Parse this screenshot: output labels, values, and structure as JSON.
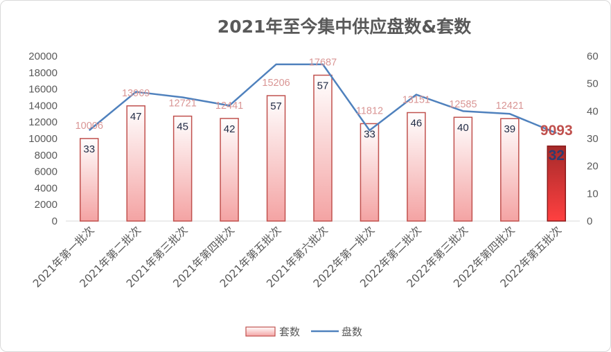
{
  "chart_data": {
    "type": "bar",
    "title": "2021年至今集中供应盘数&套数",
    "categories": [
      "2021年第一批次",
      "2021年第二批次",
      "2021年第三批次",
      "2021年第四批次",
      "2021年第五批次",
      "2021年第六批次",
      "2022年第一批次",
      "2022年第二批次",
      "2022年第三批次",
      "2022年第四批次",
      "2022年第五批次"
    ],
    "series": [
      {
        "name": "套数",
        "type": "bar",
        "axis": "left",
        "values": [
          10006,
          13969,
          12721,
          12441,
          15206,
          17687,
          11812,
          13151,
          12585,
          12421,
          9093
        ],
        "color": "#f4b8b8",
        "highlight_color": "#e03b3b"
      },
      {
        "name": "盘数",
        "type": "line",
        "axis": "right",
        "values": [
          33,
          47,
          45,
          42,
          57,
          57,
          33,
          46,
          40,
          39,
          32
        ],
        "color": "#4f81bd"
      }
    ],
    "highlight_index": 10,
    "left_axis": {
      "min": 0,
      "max": 20000,
      "step": 2000,
      "ticks": [
        "0",
        "2000",
        "4000",
        "6000",
        "8000",
        "10000",
        "12000",
        "14000",
        "16000",
        "18000",
        "20000"
      ]
    },
    "right_axis": {
      "min": 0,
      "max": 60,
      "step": 10,
      "ticks": [
        "0",
        "10",
        "20",
        "30",
        "40",
        "50",
        "60"
      ]
    },
    "grid": false,
    "legend_position": "bottom"
  },
  "legend": {
    "bar_label": "套数",
    "line_label": "盘数"
  }
}
